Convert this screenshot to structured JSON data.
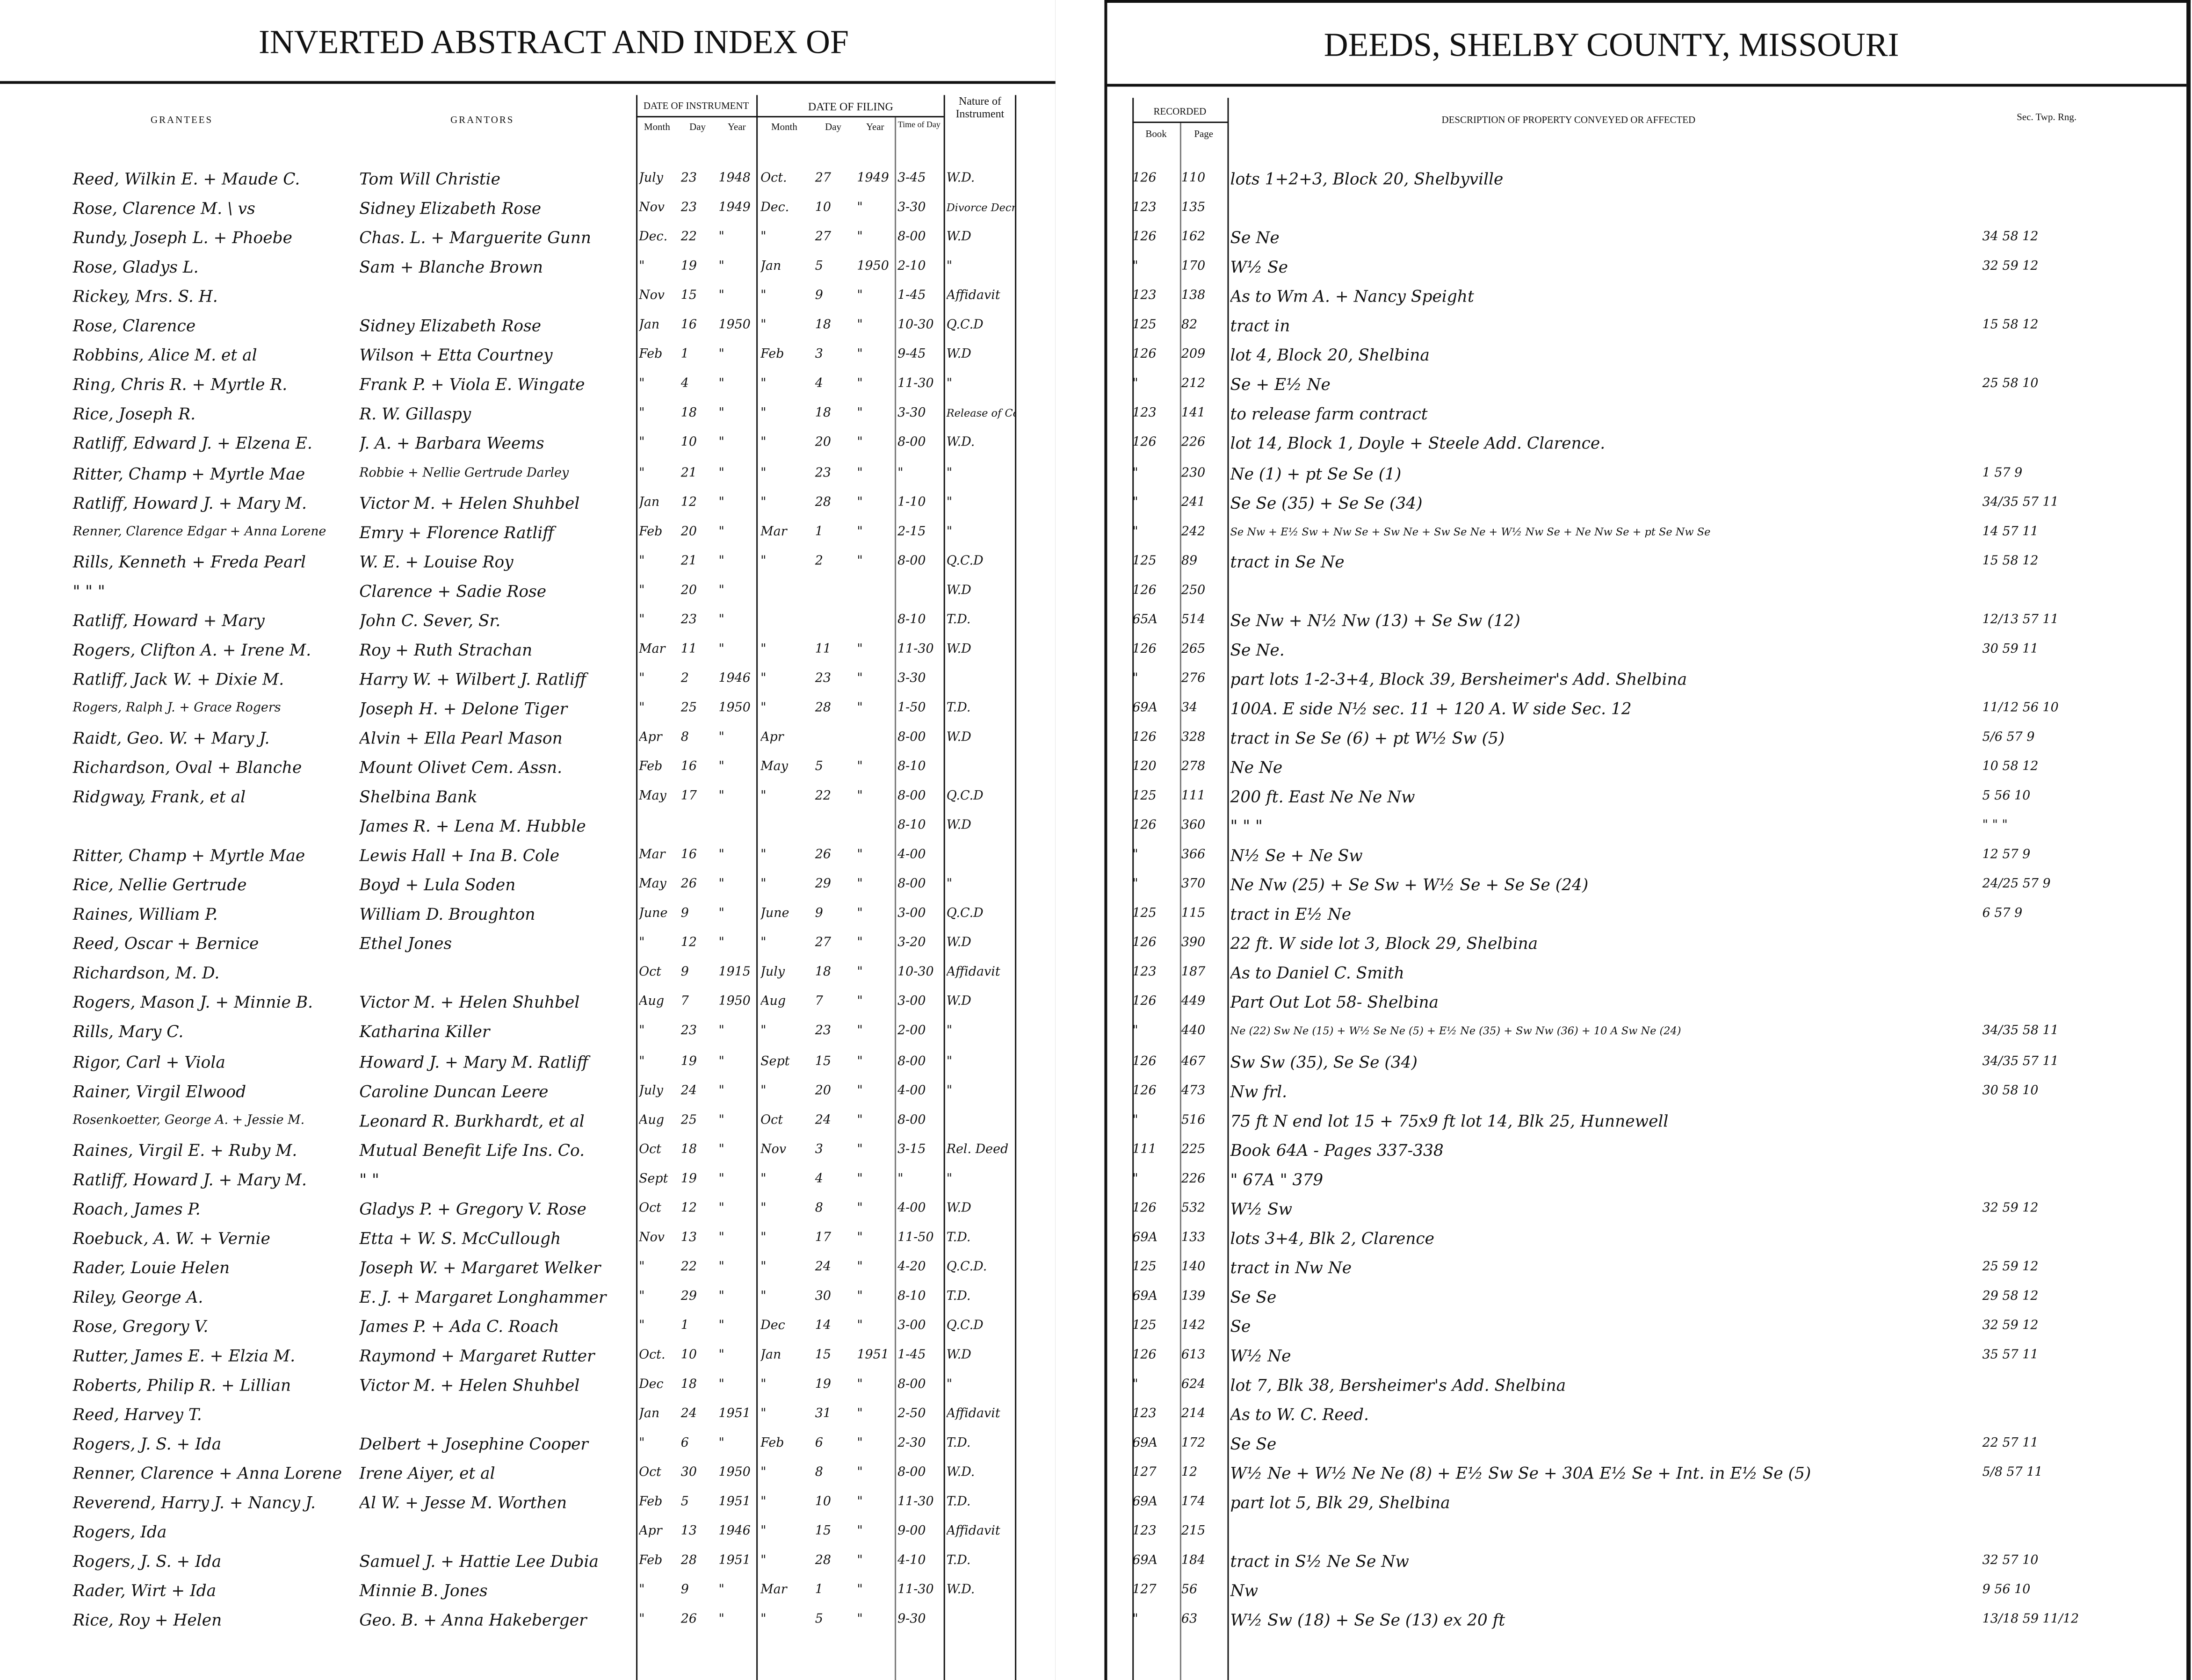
{
  "left_page": {
    "title": "INVERTED ABSTRACT AND INDEX OF",
    "headers": {
      "grantees": "GRANTEES",
      "grantors": "GRANTORS",
      "date_of_instrument": "DATE OF INSTRUMENT",
      "date_of_filing": "DATE OF FILING",
      "month": "Month",
      "day": "Day",
      "year": "Year",
      "time_of_day": "Time of Day",
      "nature_of_instrument": "Nature of Instrument"
    }
  },
  "right_page": {
    "title": "DEEDS, SHELBY COUNTY, MISSOURI",
    "headers": {
      "recorded": "RECORDED",
      "book": "Book",
      "page": "Page",
      "description": "DESCRIPTION OF PROPERTY CONVEYED OR AFFECTED",
      "sec_twp_rng": "Sec.  Twp.  Rng."
    }
  },
  "columns": [
    "grantee",
    "grantor",
    "instr_month",
    "instr_day",
    "instr_year",
    "filing_month",
    "filing_day",
    "filing_year",
    "time",
    "nature",
    "book",
    "page",
    "description",
    "sec_twp_rng"
  ],
  "rows": [
    [
      "Reed, Wilkin E. + Maude C.",
      "Tom Will Christie",
      "July",
      "23",
      "1948",
      "Oct.",
      "27",
      "1949",
      "3-45",
      "W.D.",
      "126",
      "110",
      "lots 1+2+3, Block 20, Shelbyville",
      ""
    ],
    [
      "Rose, Clarence M. \\ vs",
      "Sidney Elizabeth Rose",
      "Nov",
      "23",
      "1949",
      "Dec.",
      "10",
      "\"",
      "3-30",
      "Divorce Decree",
      "123",
      "135",
      "",
      ""
    ],
    [
      "Rundy, Joseph L. + Phoebe",
      "Chas. L. + Marguerite Gunn",
      "Dec.",
      "22",
      "\"",
      "\"",
      "27",
      "\"",
      "8-00",
      "W.D",
      "126",
      "162",
      "Se Ne",
      "34 58 12"
    ],
    [
      "Rose, Gladys L.",
      "Sam + Blanche Brown",
      "\"",
      "19",
      "\"",
      "Jan",
      "5",
      "1950",
      "2-10",
      "\"",
      "\"",
      "170",
      "W½ Se",
      "32 59 12"
    ],
    [
      "Rickey, Mrs. S. H.",
      "",
      "Nov",
      "15",
      "\"",
      "\"",
      "9",
      "\"",
      "1-45",
      "Affidavit",
      "123",
      "138",
      "As to Wm A. + Nancy Speight",
      ""
    ],
    [
      "Rose, Clarence",
      "Sidney Elizabeth Rose",
      "Jan",
      "16",
      "1950",
      "\"",
      "18",
      "\"",
      "10-30",
      "Q.C.D",
      "125",
      "82",
      "tract in",
      "15 58 12"
    ],
    [
      "Robbins, Alice M. et al",
      "Wilson + Etta Courtney",
      "Feb",
      "1",
      "\"",
      "Feb",
      "3",
      "\"",
      "9-45",
      "W.D",
      "126",
      "209",
      "lot 4, Block 20, Shelbina",
      ""
    ],
    [
      "Ring, Chris R. + Myrtle R.",
      "Frank P. + Viola E. Wingate",
      "\"",
      "4",
      "\"",
      "\"",
      "4",
      "\"",
      "11-30",
      "\"",
      "\"",
      "212",
      "Se + E½ Ne",
      "25 58 10"
    ],
    [
      "Rice, Joseph R.",
      "R. W. Gillaspy",
      "\"",
      "18",
      "\"",
      "\"",
      "18",
      "\"",
      "3-30",
      "Release of Contract",
      "123",
      "141",
      "to release farm contract",
      ""
    ],
    [
      "Ratliff, Edward J. + Elzena E.",
      "J. A. + Barbara Weems",
      "\"",
      "10",
      "\"",
      "\"",
      "20",
      "\"",
      "8-00",
      "W.D.",
      "126",
      "226",
      "lot 14, Block 1, Doyle + Steele Add. Clarence.",
      ""
    ],
    [
      "Ritter, Champ + Myrtle Mae",
      "Robbie + Nellie Gertrude Darley",
      "\"",
      "21",
      "\"",
      "\"",
      "23",
      "\"",
      "\"",
      "\"",
      "\"",
      "230",
      "Ne (1) + pt Se Se (1)",
      "1 57 9"
    ],
    [
      "Ratliff, Howard J. + Mary M.",
      "Victor M. + Helen Shuhbel",
      "Jan",
      "12",
      "\"",
      "\"",
      "28",
      "\"",
      "1-10",
      "\"",
      "\"",
      "241",
      "Se Se (35) + Se Se (34)",
      "34/35 57 11"
    ],
    [
      "Renner, Clarence Edgar + Anna Lorene",
      "Emry + Florence Ratliff",
      "Feb",
      "20",
      "\"",
      "Mar",
      "1",
      "\"",
      "2-15",
      "\"",
      "\"",
      "242",
      "Se Nw + E½ Sw + Nw Se + Sw Ne + Sw Se Ne + W½ Nw Se + Ne Nw Se + pt Se Nw Se",
      "14 57 11"
    ],
    [
      "Rills, Kenneth + Freda Pearl",
      "W. E. + Louise Roy",
      "\"",
      "21",
      "\"",
      "\"",
      "2",
      "\"",
      "8-00",
      "Q.C.D",
      "125",
      "89",
      "tract in Se Ne",
      "15 58 12"
    ],
    [
      "\"   \"   \"",
      "Clarence + Sadie Rose",
      "\"",
      "20",
      "\"",
      "",
      "",
      "",
      "",
      "W.D",
      "126",
      "250",
      "",
      ""
    ],
    [
      "Ratliff, Howard + Mary",
      "John C. Sever, Sr.",
      "\"",
      "23",
      "\"",
      "",
      "",
      "",
      "8-10",
      "T.D.",
      "65A",
      "514",
      "Se Nw + N½ Nw (13) + Se Sw (12)",
      "12/13 57 11"
    ],
    [
      "Rogers, Clifton A. + Irene M.",
      "Roy + Ruth Strachan",
      "Mar",
      "11",
      "\"",
      "\"",
      "11",
      "\"",
      "11-30",
      "W.D",
      "126",
      "265",
      "Se Ne.",
      "30 59 11"
    ],
    [
      "Ratliff, Jack W. + Dixie M.",
      "Harry W. + Wilbert J. Ratliff",
      "\"",
      "2",
      "1946",
      "\"",
      "23",
      "\"",
      "3-30",
      "",
      "\"",
      "276",
      "part lots 1-2-3+4, Block 39, Bersheimer's Add. Shelbina",
      ""
    ],
    [
      "Rogers, Ralph J. + Grace Rogers",
      "Joseph H. + Delone Tiger",
      "\"",
      "25",
      "1950",
      "\"",
      "28",
      "\"",
      "1-50",
      "T.D.",
      "69A",
      "34",
      "100A. E side N½ sec. 11 + 120 A. W side Sec. 12",
      "11/12 56 10"
    ],
    [
      "Raidt, Geo. W. + Mary J.",
      "Alvin + Ella Pearl Mason",
      "Apr",
      "8",
      "\"",
      "Apr",
      "",
      "",
      "8-00",
      "W.D",
      "126",
      "328",
      "tract in Se Se (6) + pt W½ Sw (5)",
      "5/6 57 9"
    ],
    [
      "Richardson, Oval + Blanche",
      "Mount Olivet Cem. Assn.",
      "Feb",
      "16",
      "\"",
      "May",
      "5",
      "\"",
      "8-10",
      "",
      "120",
      "278",
      "Ne Ne",
      "10 58 12"
    ],
    [
      "Ridgway, Frank, et al",
      "Shelbina Bank",
      "May",
      "17",
      "\"",
      "\"",
      "22",
      "\"",
      "8-00",
      "Q.C.D",
      "125",
      "111",
      "200 ft. East Ne Ne Nw",
      "5 56 10"
    ],
    [
      "",
      "James R. + Lena M. Hubble",
      "",
      "",
      "",
      "",
      "",
      "",
      "8-10",
      "W.D",
      "126",
      "360",
      "\"   \"   \"",
      "\"   \"   \""
    ],
    [
      "Ritter, Champ + Myrtle Mae",
      "Lewis Hall + Ina B. Cole",
      "Mar",
      "16",
      "\"",
      "\"",
      "26",
      "\"",
      "4-00",
      "",
      "\"",
      "366",
      "N½ Se + Ne Sw",
      "12 57 9"
    ],
    [
      "Rice, Nellie Gertrude",
      "Boyd + Lula Soden",
      "May",
      "26",
      "\"",
      "\"",
      "29",
      "\"",
      "8-00",
      "\"",
      "\"",
      "370",
      "Ne Nw (25) + Se Sw + W½ Se + Se Se (24)",
      "24/25 57 9"
    ],
    [
      "Raines, William P.",
      "William D. Broughton",
      "June",
      "9",
      "\"",
      "June",
      "9",
      "\"",
      "3-00",
      "Q.C.D",
      "125",
      "115",
      "tract in E½ Ne",
      "6 57 9"
    ],
    [
      "Reed, Oscar + Bernice",
      "Ethel Jones",
      "\"",
      "12",
      "\"",
      "\"",
      "27",
      "\"",
      "3-20",
      "W.D",
      "126",
      "390",
      "22 ft. W side lot 3, Block 29, Shelbina",
      ""
    ],
    [
      "Richardson, M. D.",
      "",
      "Oct",
      "9",
      "1915",
      "July",
      "18",
      "\"",
      "10-30",
      "Affidavit",
      "123",
      "187",
      "As to Daniel C. Smith",
      ""
    ],
    [
      "Rogers, Mason J. + Minnie B.",
      "Victor M. + Helen Shuhbel",
      "Aug",
      "7",
      "1950",
      "Aug",
      "7",
      "\"",
      "3-00",
      "W.D",
      "126",
      "449",
      "Part Out Lot 58- Shelbina",
      ""
    ],
    [
      "Rills, Mary C.",
      "Katharina Killer",
      "\"",
      "23",
      "\"",
      "\"",
      "23",
      "\"",
      "2-00",
      "\"",
      "\"",
      "440",
      "Ne (22) Sw Ne (15) + W½ Se Ne (5) + E½ Ne (35) + Sw Nw (36) + 10 A Sw Ne (24)",
      "34/35 58 11"
    ],
    [
      "Rigor, Carl + Viola",
      "Howard J. + Mary M. Ratliff",
      "\"",
      "19",
      "\"",
      "Sept",
      "15",
      "\"",
      "8-00",
      "\"",
      "126",
      "467",
      "Sw Sw (35), Se Se (34)",
      "34/35 57 11"
    ],
    [
      "Rainer, Virgil Elwood",
      "Caroline Duncan Leere",
      "July",
      "24",
      "\"",
      "\"",
      "20",
      "\"",
      "4-00",
      "\"",
      "126",
      "473",
      "Nw frl.",
      "30 58 10"
    ],
    [
      "Rosenkoetter, George A. + Jessie M.",
      "Leonard R. Burkhardt, et al",
      "Aug",
      "25",
      "\"",
      "Oct",
      "24",
      "\"",
      "8-00",
      "",
      "\"",
      "516",
      "75 ft N end lot 15 + 75x9 ft lot 14, Blk 25, Hunnewell",
      ""
    ],
    [
      "Raines, Virgil E. + Ruby M.",
      "Mutual Benefit Life Ins. Co.",
      "Oct",
      "18",
      "\"",
      "Nov",
      "3",
      "\"",
      "3-15",
      "Rel. Deed",
      "111",
      "225",
      "Book 64A - Pages 337-338",
      ""
    ],
    [
      "Ratliff, Howard J. + Mary M.",
      "\"   \"",
      "Sept",
      "19",
      "\"",
      "\"",
      "4",
      "\"",
      "\"",
      "\"",
      "\"",
      "226",
      "\"  67A  \"  379",
      ""
    ],
    [
      "Roach, James P.",
      "Gladys P. + Gregory V. Rose",
      "Oct",
      "12",
      "\"",
      "\"",
      "8",
      "\"",
      "4-00",
      "W.D",
      "126",
      "532",
      "W½ Sw",
      "32 59 12"
    ],
    [
      "Roebuck, A. W. + Vernie",
      "Etta + W. S. McCullough",
      "Nov",
      "13",
      "\"",
      "\"",
      "17",
      "\"",
      "11-50",
      "T.D.",
      "69A",
      "133",
      "lots 3+4, Blk 2, Clarence",
      ""
    ],
    [
      "Rader, Louie Helen",
      "Joseph W. + Margaret Welker",
      "\"",
      "22",
      "\"",
      "\"",
      "24",
      "\"",
      "4-20",
      "Q.C.D.",
      "125",
      "140",
      "tract in Nw Ne",
      "25 59 12"
    ],
    [
      "Riley, George A.",
      "E. J. + Margaret Longhammer",
      "\"",
      "29",
      "\"",
      "\"",
      "30",
      "\"",
      "8-10",
      "T.D.",
      "69A",
      "139",
      "Se Se",
      "29 58 12"
    ],
    [
      "Rose, Gregory V.",
      "James P. + Ada C. Roach",
      "\"",
      "1",
      "\"",
      "Dec",
      "14",
      "\"",
      "3-00",
      "Q.C.D",
      "125",
      "142",
      "Se",
      "32 59 12"
    ],
    [
      "Rutter, James E. + Elzia M.",
      "Raymond + Margaret Rutter",
      "Oct.",
      "10",
      "\"",
      "Jan",
      "15",
      "1951",
      "1-45",
      "W.D",
      "126",
      "613",
      "W½ Ne",
      "35 57 11"
    ],
    [
      "Roberts, Philip R. + Lillian",
      "Victor M. + Helen Shuhbel",
      "Dec",
      "18",
      "\"",
      "\"",
      "19",
      "\"",
      "8-00",
      "\"",
      "\"",
      "624",
      "lot 7, Blk 38, Bersheimer's Add. Shelbina",
      ""
    ],
    [
      "Reed, Harvey T.",
      "",
      "Jan",
      "24",
      "1951",
      "\"",
      "31",
      "\"",
      "2-50",
      "Affidavit",
      "123",
      "214",
      "As to W. C. Reed.",
      ""
    ],
    [
      "Rogers, J. S. + Ida",
      "Delbert + Josephine Cooper",
      "\"",
      "6",
      "\"",
      "Feb",
      "6",
      "\"",
      "2-30",
      "T.D.",
      "69A",
      "172",
      "Se Se",
      "22 57 11"
    ],
    [
      "Renner, Clarence + Anna Lorene",
      "Irene Aiyer, et al",
      "Oct",
      "30",
      "1950",
      "\"",
      "8",
      "\"",
      "8-00",
      "W.D.",
      "127",
      "12",
      "W½ Ne + W½ Ne Ne (8) + E½ Sw Se + 30A E½ Se + Int. in E½ Se (5)",
      "5/8 57 11"
    ],
    [
      "Reverend, Harry J. + Nancy J.",
      "Al W. + Jesse M. Worthen",
      "Feb",
      "5",
      "1951",
      "\"",
      "10",
      "\"",
      "11-30",
      "T.D.",
      "69A",
      "174",
      "part lot 5, Blk 29, Shelbina",
      ""
    ],
    [
      "Rogers, Ida",
      "",
      "Apr",
      "13",
      "1946",
      "\"",
      "15",
      "\"",
      "9-00",
      "Affidavit",
      "123",
      "215",
      "",
      ""
    ],
    [
      "Rogers, J. S. + Ida",
      "Samuel J. + Hattie Lee Dubia",
      "Feb",
      "28",
      "1951",
      "\"",
      "28",
      "\"",
      "4-10",
      "T.D.",
      "69A",
      "184",
      "tract in S½ Ne Se Nw",
      "32 57 10"
    ],
    [
      "Rader, Wirt + Ida",
      "Minnie B. Jones",
      "\"",
      "9",
      "\"",
      "Mar",
      "1",
      "\"",
      "11-30",
      "W.D.",
      "127",
      "56",
      "Nw",
      "9 56 10"
    ],
    [
      "Rice, Roy + Helen",
      "Geo. B. + Anna Hakeberger",
      "\"",
      "26",
      "\"",
      "\"",
      "5",
      "\"",
      "9-30",
      "",
      "\"",
      "63",
      "W½ Sw (18) + Se Se (13) ex 20 ft",
      "13/18 59 11/12"
    ]
  ]
}
